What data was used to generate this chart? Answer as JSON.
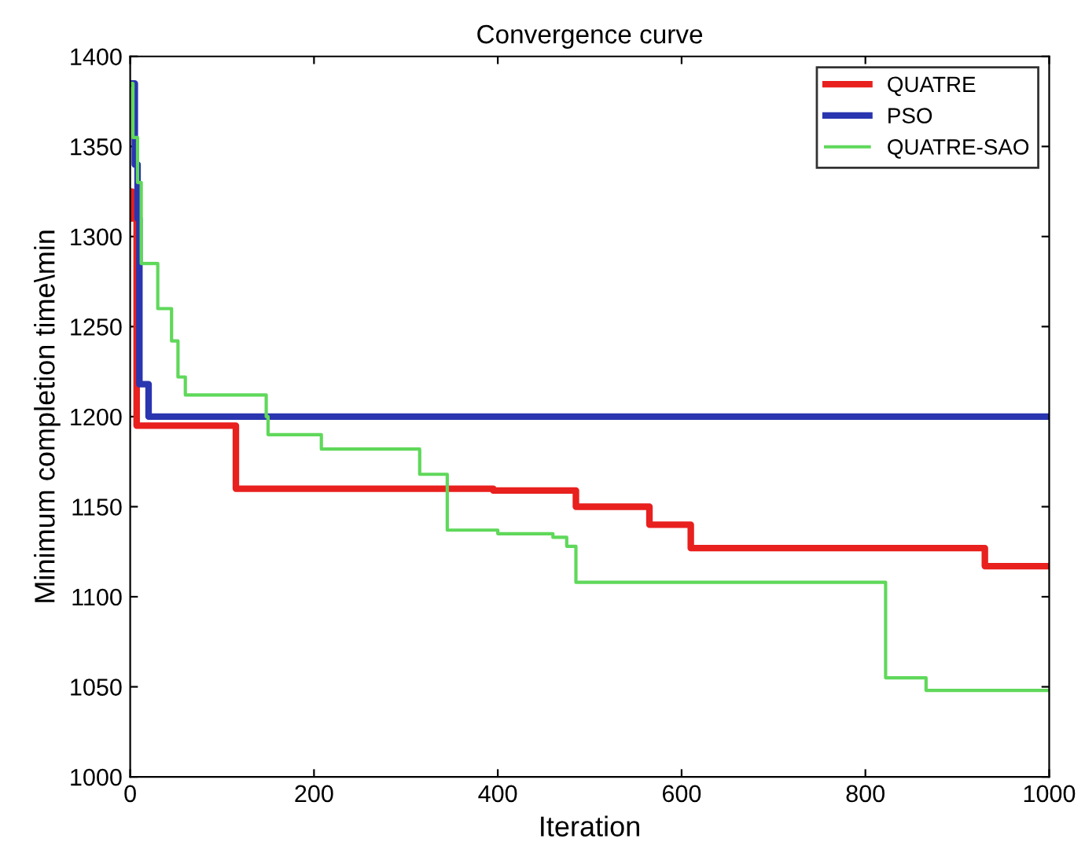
{
  "chart_data": {
    "type": "step",
    "title": "Convergence curve",
    "xlabel": "Iteration",
    "ylabel": "Minimum completion time\\min",
    "xlim": [
      0,
      1000
    ],
    "ylim": [
      1000,
      1400
    ],
    "xticks": [
      0,
      200,
      400,
      600,
      800,
      1000
    ],
    "yticks": [
      1000,
      1050,
      1100,
      1150,
      1200,
      1250,
      1300,
      1350,
      1400
    ],
    "grid": false,
    "legend": "top right",
    "series": [
      {
        "name": "QUATRE",
        "color": "#e8201e",
        "x": [
          0,
          2,
          7,
          115,
          395,
          485,
          565,
          610,
          930,
          1000
        ],
        "values": [
          1325,
          1310,
          1195,
          1160,
          1159,
          1150,
          1140,
          1127,
          1117,
          1117
        ]
      },
      {
        "name": "PSO",
        "color": "#2a35b0",
        "x": [
          0,
          5,
          8,
          10,
          20,
          1000
        ],
        "values": [
          1385,
          1340,
          1310,
          1218,
          1200,
          1200
        ]
      },
      {
        "name": "QUATRE-SAO",
        "color": "#5fd85a",
        "x": [
          0,
          3,
          8,
          12,
          30,
          45,
          52,
          60,
          148,
          150,
          208,
          315,
          345,
          400,
          460,
          475,
          485,
          822,
          866,
          1000
        ],
        "values": [
          1385,
          1355,
          1330,
          1285,
          1260,
          1242,
          1222,
          1212,
          1200,
          1190,
          1182,
          1168,
          1137,
          1135,
          1133,
          1128,
          1108,
          1055,
          1048,
          1048
        ]
      }
    ]
  }
}
